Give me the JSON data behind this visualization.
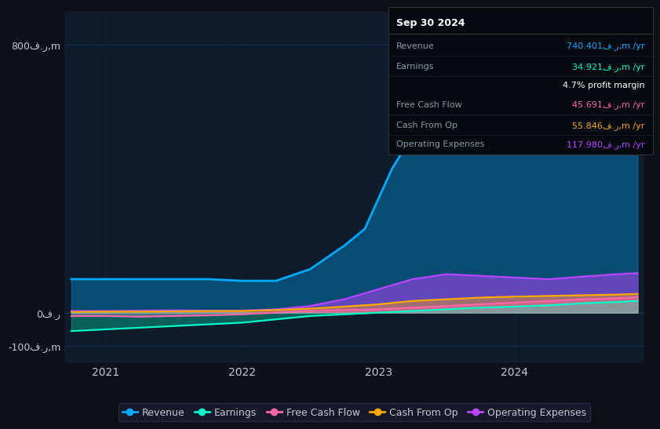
{
  "bg_color": "#0d1117",
  "plot_bg_color": "#0d1b2a",
  "grid_color": "#1e3a5f",
  "text_color": "#c0c8d0",
  "title_text": "Sep 30 2024",
  "info_box": {
    "rows": [
      {
        "label": "Revenue",
        "value": "740.401ف.ر,m /yr",
        "color": "#00aaff"
      },
      {
        "label": "Earnings",
        "value": "34.921ف.ر,m /yr",
        "color": "#00ffcc"
      },
      {
        "label": "",
        "value": "4.7% profit margin",
        "color": "#ffffff"
      },
      {
        "label": "Free Cash Flow",
        "value": "45.691ف.ر,m /yr",
        "color": "#ff66aa"
      },
      {
        "label": "Cash From Op",
        "value": "55.846ف.ر,m /yr",
        "color": "#ffaa00"
      },
      {
        "label": "Operating Expenses",
        "value": "117.980ف.ر,m /yr",
        "color": "#bb44ff"
      }
    ]
  },
  "ylim": [
    -150,
    900
  ],
  "yticks": [
    -100,
    0,
    800
  ],
  "ytick_labels": [
    "-100ف.ر,m",
    "0ف.ر",
    "800ف.ر,m"
  ],
  "xlim_start": 2020.7,
  "xlim_end": 2024.95,
  "xticks": [
    2021,
    2022,
    2023,
    2024
  ],
  "series": {
    "revenue": {
      "color": "#00aaff",
      "fill": true,
      "fill_alpha": 0.35,
      "linewidth": 2.0,
      "x": [
        2020.75,
        2021.0,
        2021.25,
        2021.5,
        2021.75,
        2022.0,
        2022.1,
        2022.25,
        2022.5,
        2022.75,
        2022.9,
        2023.0,
        2023.1,
        2023.25,
        2023.5,
        2023.75,
        2024.0,
        2024.25,
        2024.5,
        2024.75,
        2024.9
      ],
      "y": [
        100,
        100,
        100,
        100,
        100,
        95,
        95,
        95,
        130,
        200,
        250,
        340,
        430,
        530,
        620,
        670,
        660,
        650,
        680,
        730,
        745
      ]
    },
    "operating_expenses": {
      "color": "#bb44ff",
      "fill": true,
      "fill_alpha": 0.5,
      "linewidth": 1.5,
      "x": [
        2020.75,
        2021.0,
        2021.25,
        2021.5,
        2021.75,
        2022.0,
        2022.25,
        2022.5,
        2022.75,
        2023.0,
        2023.25,
        2023.5,
        2023.75,
        2024.0,
        2024.25,
        2024.5,
        2024.75,
        2024.9
      ],
      "y": [
        5,
        5,
        6,
        7,
        6,
        6,
        10,
        20,
        40,
        70,
        100,
        115,
        110,
        105,
        100,
        108,
        115,
        118
      ]
    },
    "free_cash_flow": {
      "color": "#ff66aa",
      "fill": true,
      "fill_alpha": 0.4,
      "linewidth": 1.5,
      "x": [
        2020.75,
        2021.0,
        2021.25,
        2021.5,
        2021.75,
        2022.0,
        2022.25,
        2022.5,
        2022.75,
        2023.0,
        2023.25,
        2023.5,
        2023.75,
        2024.0,
        2024.25,
        2024.5,
        2024.75,
        2024.9
      ],
      "y": [
        -10,
        -10,
        -12,
        -10,
        -8,
        -5,
        0,
        5,
        8,
        10,
        15,
        20,
        25,
        30,
        35,
        40,
        43,
        46
      ]
    },
    "cash_from_op": {
      "color": "#ffaa00",
      "fill": true,
      "fill_alpha": 0.4,
      "linewidth": 1.5,
      "x": [
        2020.75,
        2021.0,
        2021.25,
        2021.5,
        2021.75,
        2022.0,
        2022.25,
        2022.5,
        2022.75,
        2023.0,
        2023.25,
        2023.5,
        2023.75,
        2024.0,
        2024.25,
        2024.5,
        2024.75,
        2024.9
      ],
      "y": [
        2,
        3,
        3,
        4,
        5,
        5,
        8,
        12,
        18,
        25,
        35,
        40,
        45,
        48,
        50,
        52,
        54,
        56
      ]
    },
    "earnings": {
      "color": "#00ffcc",
      "fill": true,
      "fill_alpha": 0.3,
      "linewidth": 1.5,
      "x": [
        2020.75,
        2021.0,
        2021.25,
        2021.5,
        2021.75,
        2022.0,
        2022.25,
        2022.5,
        2022.75,
        2023.0,
        2023.25,
        2023.5,
        2023.75,
        2024.0,
        2024.25,
        2024.5,
        2024.75,
        2024.9
      ],
      "y": [
        -55,
        -50,
        -45,
        -40,
        -35,
        -30,
        -20,
        -10,
        -5,
        0,
        5,
        10,
        15,
        18,
        22,
        28,
        32,
        35
      ]
    }
  },
  "legend": [
    {
      "label": "Revenue",
      "color": "#00aaff"
    },
    {
      "label": "Earnings",
      "color": "#00ffcc"
    },
    {
      "label": "Free Cash Flow",
      "color": "#ff66aa"
    },
    {
      "label": "Cash From Op",
      "color": "#ffaa00"
    },
    {
      "label": "Operating Expenses",
      "color": "#bb44ff"
    }
  ]
}
